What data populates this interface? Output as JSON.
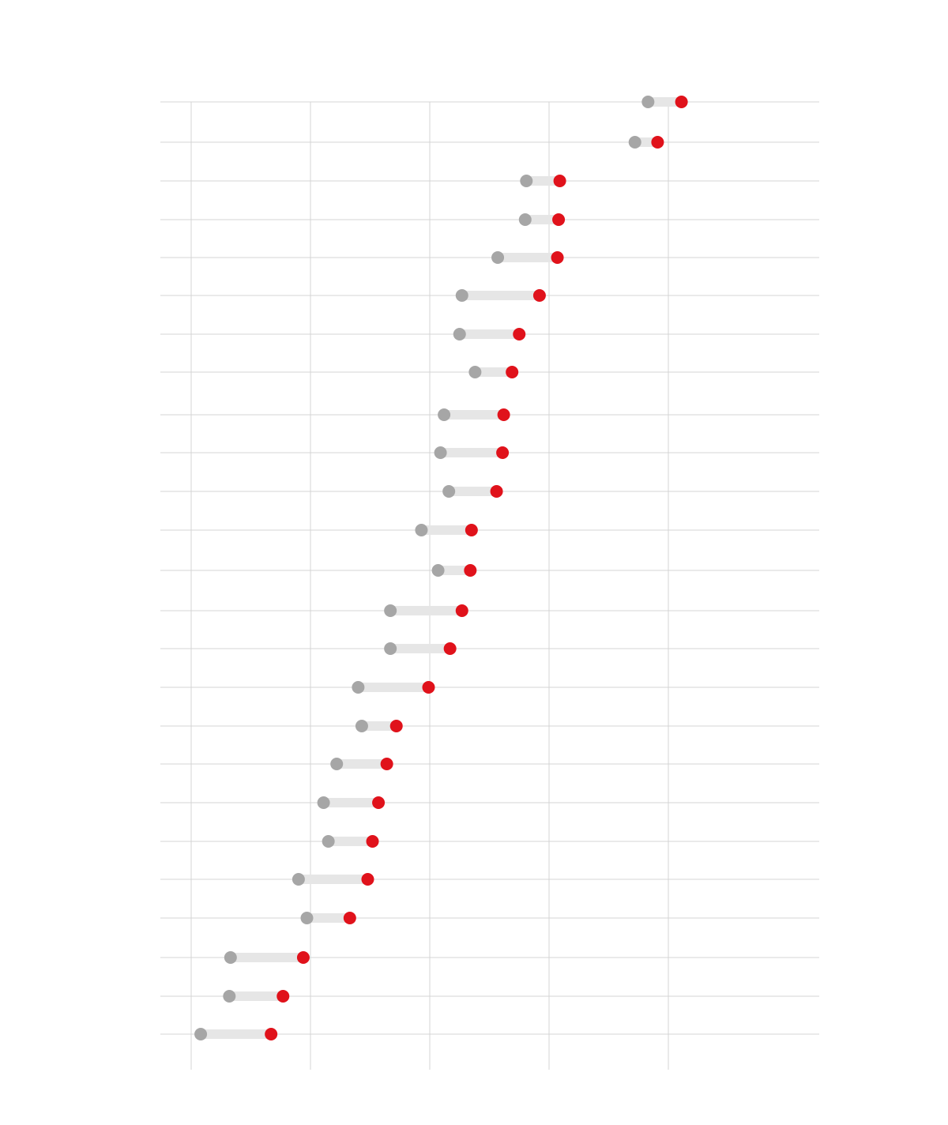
{
  "chart_data": {
    "type": "dumbbell",
    "title": "",
    "xlabel": "",
    "ylabel": "",
    "xlim": [
      0,
      5.5
    ],
    "x_gridlines": [
      0,
      1,
      2,
      3,
      4
    ],
    "grid": "on",
    "legend": "none",
    "colors": {
      "start": "#a6a6a6",
      "end": "#e0121b",
      "bar": "#e6e6e6",
      "grid": "#d4d4d4"
    },
    "rows": [
      {
        "start": 3.83,
        "end": 4.11
      },
      {
        "start": 3.72,
        "end": 3.91
      },
      {
        "start": 2.81,
        "end": 3.09
      },
      {
        "start": 2.8,
        "end": 3.08
      },
      {
        "start": 2.57,
        "end": 3.07
      },
      {
        "start": 2.27,
        "end": 2.92
      },
      {
        "start": 2.25,
        "end": 2.75
      },
      {
        "start": 2.38,
        "end": 2.69
      },
      {
        "start": 2.12,
        "end": 2.62
      },
      {
        "start": 2.09,
        "end": 2.61
      },
      {
        "start": 2.16,
        "end": 2.56
      },
      {
        "start": 1.93,
        "end": 2.35
      },
      {
        "start": 2.07,
        "end": 2.34
      },
      {
        "start": 1.67,
        "end": 2.27
      },
      {
        "start": 1.67,
        "end": 2.17
      },
      {
        "start": 1.4,
        "end": 1.99
      },
      {
        "start": 1.43,
        "end": 1.72
      },
      {
        "start": 1.22,
        "end": 1.64
      },
      {
        "start": 1.11,
        "end": 1.57
      },
      {
        "start": 1.15,
        "end": 1.52
      },
      {
        "start": 0.9,
        "end": 1.48
      },
      {
        "start": 0.97,
        "end": 1.33
      },
      {
        "start": 0.33,
        "end": 0.94
      },
      {
        "start": 0.32,
        "end": 0.77
      },
      {
        "start": 0.08,
        "end": 0.67
      }
    ]
  }
}
